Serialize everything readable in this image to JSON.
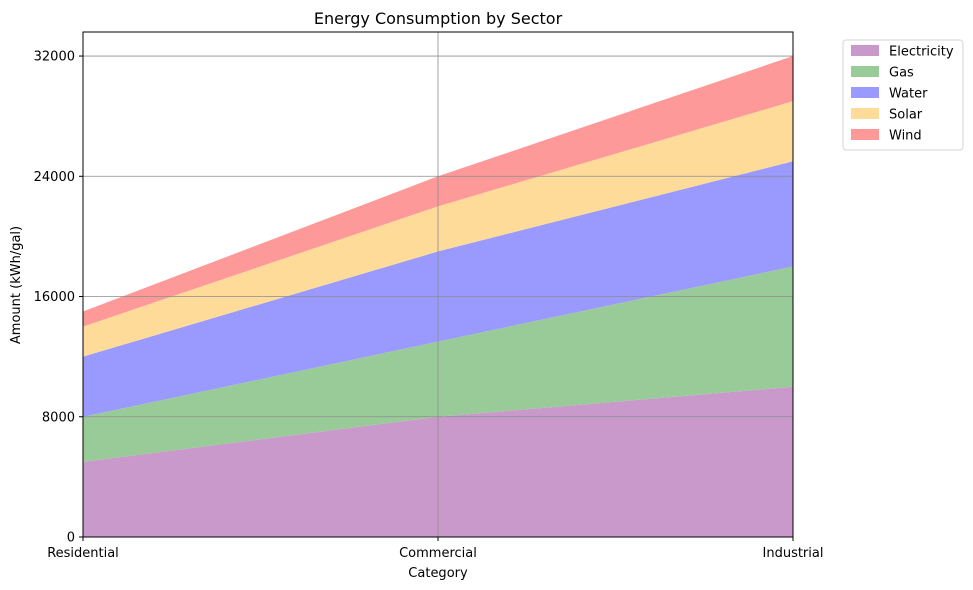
{
  "chart_data": {
    "type": "area",
    "stacked": true,
    "title": "Energy Consumption by Sector",
    "xlabel": "Category",
    "ylabel": "Amount (kWh/gal)",
    "categories": [
      "Residential",
      "Commercial",
      "Industrial"
    ],
    "ylim": [
      0,
      33600
    ],
    "yticks": [
      0,
      8000,
      16000,
      24000,
      32000
    ],
    "grid": true,
    "legend_position": "outside-top-right",
    "series": [
      {
        "name": "Electricity",
        "values": [
          5000,
          8000,
          10000
        ],
        "color": "#c999cb"
      },
      {
        "name": "Gas",
        "values": [
          3000,
          5000,
          8000
        ],
        "color": "#99cb99"
      },
      {
        "name": "Water",
        "values": [
          4000,
          6000,
          7000
        ],
        "color": "#9999fe"
      },
      {
        "name": "Solar",
        "values": [
          2000,
          3000,
          4000
        ],
        "color": "#fedb99"
      },
      {
        "name": "Wind",
        "values": [
          1000,
          2000,
          3000
        ],
        "color": "#fe9999"
      }
    ]
  }
}
